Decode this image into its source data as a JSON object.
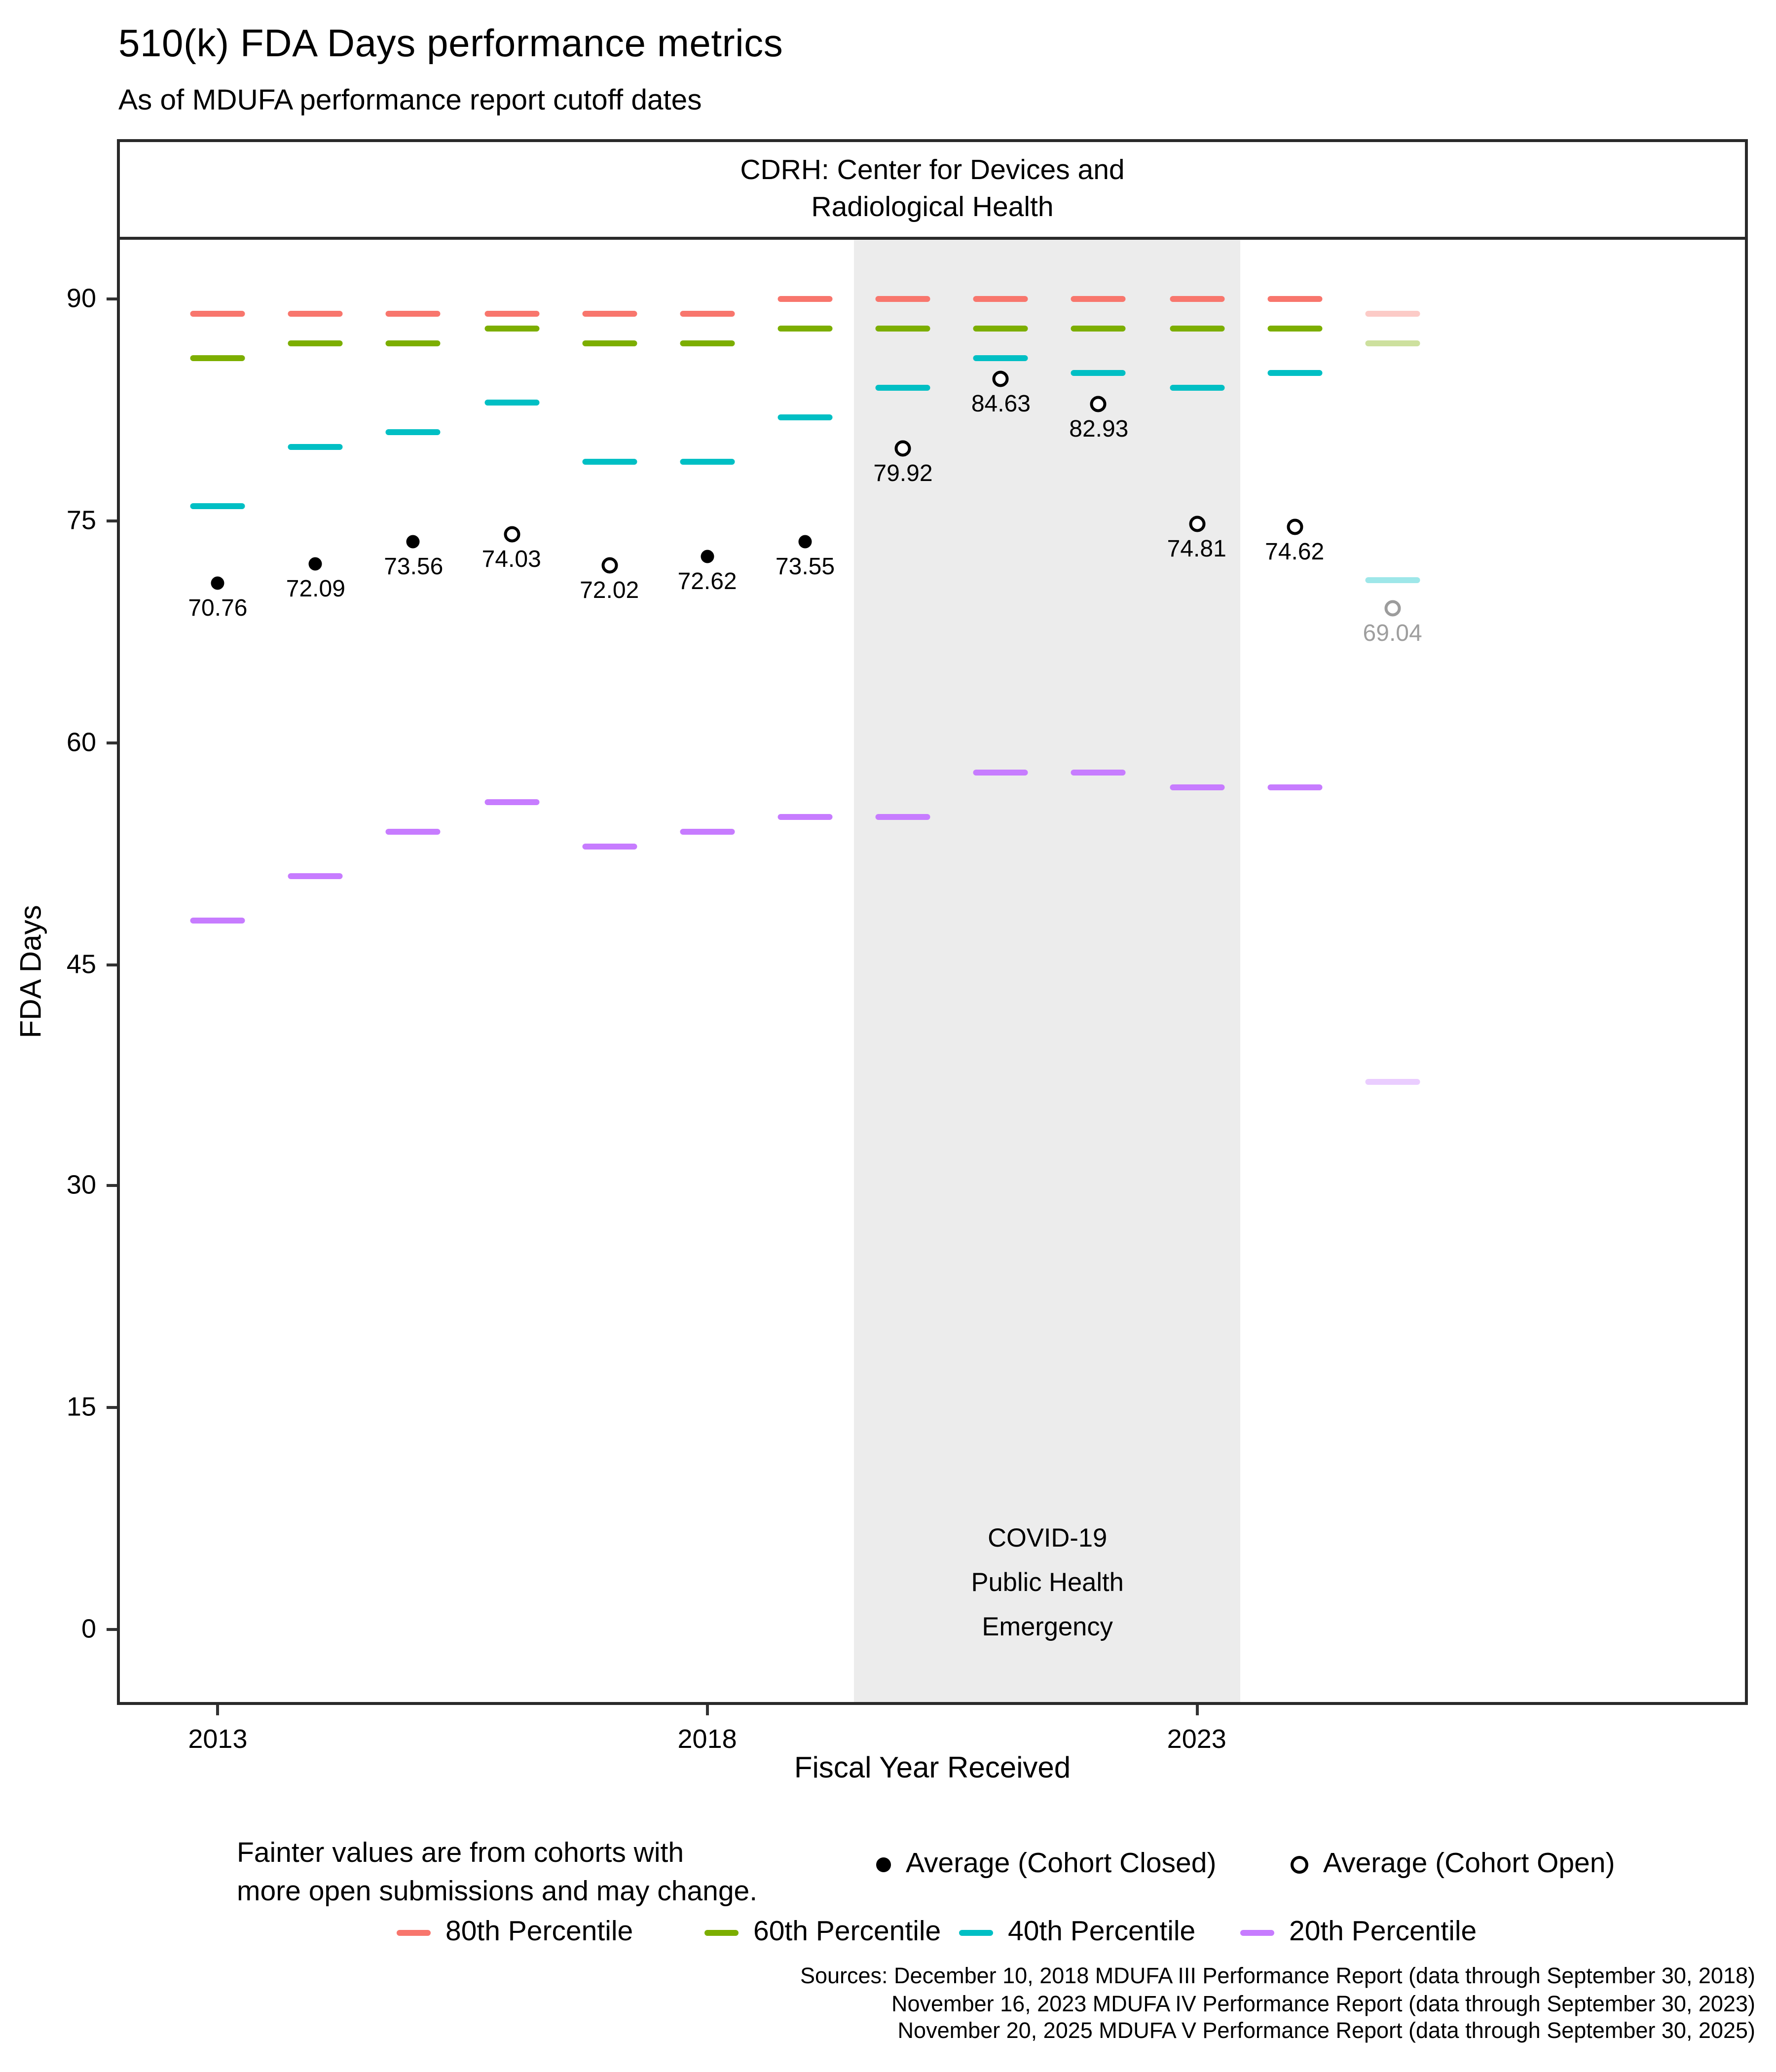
{
  "chart_data": {
    "type": "scatter",
    "title": "510(k) FDA Days performance metrics",
    "subtitle": "As of MDUFA performance report cutoff dates",
    "facet_label_lines": [
      "CDRH: Center for Devices and",
      "Radiological Health"
    ],
    "xlabel": "Fiscal Year Received",
    "ylabel": "FDA Days",
    "x_ticks": [
      2013,
      2018,
      2023
    ],
    "y_ticks": [
      0,
      15,
      30,
      45,
      60,
      75,
      90
    ],
    "x_range": [
      2012,
      2028.6
    ],
    "y_range": [
      -4.9,
      94
    ],
    "grid": false,
    "years": [
      2013,
      2014,
      2015,
      2016,
      2017,
      2018,
      2019,
      2020,
      2021,
      2022,
      2023,
      2024,
      2025
    ],
    "faint_years": [
      2025
    ],
    "percentiles": [
      {
        "name": "80th Percentile",
        "color": "#F8766D",
        "values": [
          89,
          89,
          89,
          89,
          89,
          89,
          90,
          90,
          90,
          90,
          90,
          90,
          89
        ]
      },
      {
        "name": "60th Percentile",
        "color": "#7CAE00",
        "values": [
          86,
          87,
          87,
          88,
          87,
          87,
          88,
          88,
          88,
          88,
          88,
          88,
          87
        ]
      },
      {
        "name": "40th Percentile",
        "color": "#00BFC4",
        "values": [
          76,
          80,
          81,
          83,
          79,
          79,
          82,
          84,
          86,
          85,
          84,
          85,
          71
        ]
      },
      {
        "name": "20th Percentile",
        "color": "#C77CFF",
        "values": [
          48,
          51,
          54,
          56,
          53,
          54,
          55,
          55,
          58,
          58,
          57,
          57,
          37
        ]
      }
    ],
    "averages": [
      {
        "year": 2013,
        "value": 70.76,
        "label": "70.76",
        "cohort": "closed"
      },
      {
        "year": 2014,
        "value": 72.09,
        "label": "72.09",
        "cohort": "closed"
      },
      {
        "year": 2015,
        "value": 73.56,
        "label": "73.56",
        "cohort": "closed"
      },
      {
        "year": 2016,
        "value": 74.03,
        "label": "74.03",
        "cohort": "open"
      },
      {
        "year": 2017,
        "value": 72.02,
        "label": "72.02",
        "cohort": "open"
      },
      {
        "year": 2018,
        "value": 72.62,
        "label": "72.62",
        "cohort": "closed"
      },
      {
        "year": 2019,
        "value": 73.55,
        "label": "73.55",
        "cohort": "closed"
      },
      {
        "year": 2020,
        "value": 79.92,
        "label": "79.92",
        "cohort": "open"
      },
      {
        "year": 2021,
        "value": 84.63,
        "label": "84.63",
        "cohort": "open"
      },
      {
        "year": 2022,
        "value": 82.93,
        "label": "82.93",
        "cohort": "open"
      },
      {
        "year": 2023,
        "value": 74.81,
        "label": "74.81",
        "cohort": "open"
      },
      {
        "year": 2024,
        "value": 74.62,
        "label": "74.62",
        "cohort": "open"
      },
      {
        "year": 2025,
        "value": 69.04,
        "label": "69.04",
        "cohort": "open"
      }
    ],
    "covid_region": {
      "x_start": 2019.5,
      "x_end": 2023.45,
      "label_lines": [
        "COVID-19",
        "Public Health",
        "Emergency"
      ]
    },
    "note_lines": [
      "Fainter values are from cohorts with",
      "more open submissions and may change."
    ],
    "legend_points": [
      {
        "label": "Average (Cohort Closed)",
        "style": "closed"
      },
      {
        "label": "Average (Cohort Open)",
        "style": "open"
      }
    ],
    "legend_percentiles": [
      {
        "label": "80th Percentile",
        "color": "#F8766D"
      },
      {
        "label": "60th Percentile",
        "color": "#7CAE00"
      },
      {
        "label": "40th Percentile",
        "color": "#00BFC4"
      },
      {
        "label": "20th Percentile",
        "color": "#C77CFF"
      }
    ],
    "sources_lines": [
      "Sources: December 10, 2018 MDUFA III Performance Report (data through September 30, 2018)",
      "November 16, 2023 MDUFA IV Performance Report (data through September 30, 2023)",
      "November 20, 2025 MDUFA V Performance Report (data through September 30, 2025)"
    ]
  }
}
